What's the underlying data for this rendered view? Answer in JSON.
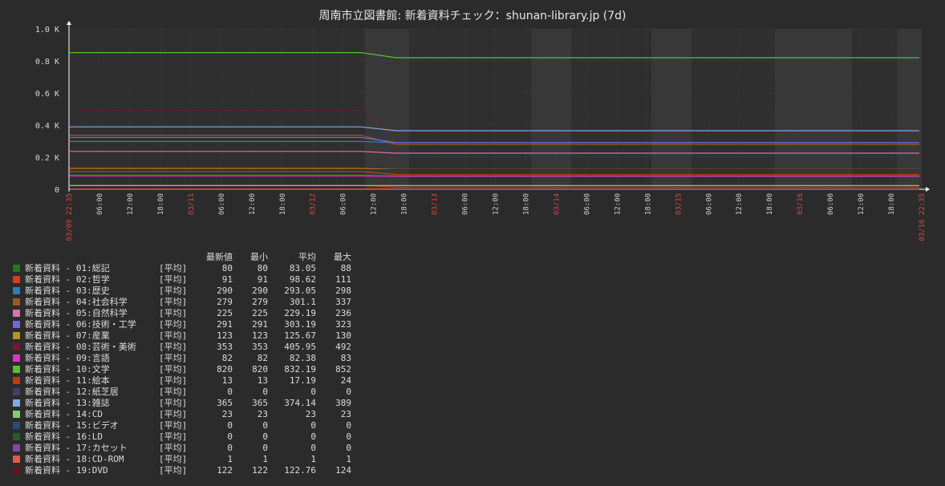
{
  "title": "周南市立図書館: 新着資料チェック：shunan-library.jp (7d)",
  "chart_data": {
    "type": "line",
    "title": "周南市立図書館: 新着資料チェック：shunan-library.jp (7d)",
    "y_ticks": [
      "1.0 K",
      "0.8 K",
      "0.6 K",
      "0.4 K",
      "0.2 K",
      "0"
    ],
    "ylim": [
      0,
      1000
    ],
    "x_tick_labels": [
      "03/09 22:35",
      "06:00",
      "12:00",
      "18:00",
      "03/11",
      "06:00",
      "12:00",
      "18:00",
      "03/12",
      "06:00",
      "12:00",
      "18:00",
      "03/13",
      "06:00",
      "12:00",
      "18:00",
      "03/14",
      "06:00",
      "12:00",
      "18:00",
      "03/15",
      "06:00",
      "12:00",
      "18:00",
      "03/16",
      "06:00",
      "12:00",
      "18:00",
      "03/16 22:35"
    ],
    "x_tick_highlight": [
      true,
      false,
      false,
      false,
      true,
      false,
      false,
      false,
      true,
      false,
      false,
      false,
      true,
      false,
      false,
      false,
      true,
      false,
      false,
      false,
      true,
      false,
      false,
      false,
      true,
      false,
      false,
      false,
      true
    ],
    "grid": true,
    "legend_position": "bottom-left",
    "stat_headers": [
      "最新値",
      "最小",
      "平均",
      "最大"
    ],
    "series": [
      {
        "name": "新着資料 - 01:総記",
        "agg": "[平均]",
        "color": "#1f7a1f",
        "last": "80",
        "min": "80",
        "avg": "83.05",
        "max": "88",
        "before": 88,
        "after": 80
      },
      {
        "name": "新着資料 - 02:哲学",
        "agg": "[平均]",
        "color": "#d83a18",
        "last": "91",
        "min": "91",
        "avg": "98.62",
        "max": "111",
        "before": 111,
        "after": 91
      },
      {
        "name": "新着資料 - 03:歴史",
        "agg": "[平均]",
        "color": "#2a7fb8",
        "last": "290",
        "min": "290",
        "avg": "293.05",
        "max": "298",
        "before": 298,
        "after": 290
      },
      {
        "name": "新着資料 - 04:社会科学",
        "agg": "[平均]",
        "color": "#9a5a1e",
        "last": "279",
        "min": "279",
        "avg": "301.1",
        "max": "337",
        "before": 337,
        "after": 279
      },
      {
        "name": "新着資料 - 05:自然科学",
        "agg": "[平均]",
        "color": "#e070a8",
        "last": "225",
        "min": "225",
        "avg": "229.19",
        "max": "236",
        "before": 236,
        "after": 225
      },
      {
        "name": "新着資料 - 06:技術・工学",
        "agg": "[平均]",
        "color": "#7068dc",
        "last": "291",
        "min": "291",
        "avg": "303.19",
        "max": "323",
        "before": 323,
        "after": 291
      },
      {
        "name": "新着資料 - 07:産業",
        "agg": "[平均]",
        "color": "#b8921e",
        "last": "123",
        "min": "123",
        "avg": "125.67",
        "max": "130",
        "before": 130,
        "after": 123
      },
      {
        "name": "新着資料 - 08:芸術・美術",
        "agg": "[平均]",
        "color": "#781830",
        "last": "353",
        "min": "353",
        "avg": "405.95",
        "max": "492",
        "before": 492,
        "after": 353
      },
      {
        "name": "新着資料 - 09:言語",
        "agg": "[平均]",
        "color": "#e030c8",
        "last": "82",
        "min": "82",
        "avg": "82.38",
        "max": "83",
        "before": 83,
        "after": 82
      },
      {
        "name": "新着資料 - 10:文学",
        "agg": "[平均]",
        "color": "#58c030",
        "last": "820",
        "min": "820",
        "avg": "832.19",
        "max": "852",
        "before": 852,
        "after": 820
      },
      {
        "name": "新着資料 - 11:絵本",
        "agg": "[平均]",
        "color": "#c03a10",
        "last": "13",
        "min": "13",
        "avg": "17.19",
        "max": "24",
        "before": 24,
        "after": 13
      },
      {
        "name": "新着資料 - 12:紙芝居",
        "agg": "[平均]",
        "color": "#4a3a68",
        "last": "0",
        "min": "0",
        "avg": "0",
        "max": "0",
        "before": 0,
        "after": 0
      },
      {
        "name": "新着資料 - 13:雑誌",
        "agg": "[平均]",
        "color": "#80a8e8",
        "last": "365",
        "min": "365",
        "avg": "374.14",
        "max": "389",
        "before": 389,
        "after": 365
      },
      {
        "name": "新着資料 - 14:CD",
        "agg": "[平均]",
        "color": "#78d078",
        "last": "23",
        "min": "23",
        "avg": "23",
        "max": "23",
        "before": 23,
        "after": 23
      },
      {
        "name": "新着資料 - 15:ビデオ",
        "agg": "[平均]",
        "color": "#284c78",
        "last": "0",
        "min": "0",
        "avg": "0",
        "max": "0",
        "before": 0,
        "after": 0
      },
      {
        "name": "新着資料 - 16:LD",
        "agg": "[平均]",
        "color": "#2c5a2c",
        "last": "0",
        "min": "0",
        "avg": "0",
        "max": "0",
        "before": 0,
        "after": 0
      },
      {
        "name": "新着資料 - 17:カセット",
        "agg": "[平均]",
        "color": "#8048a8",
        "last": "0",
        "min": "0",
        "avg": "0",
        "max": "0",
        "before": 0,
        "after": 0
      },
      {
        "name": "新着資料 - 18:CD-ROM",
        "agg": "[平均]",
        "color": "#e85848",
        "last": "1",
        "min": "1",
        "avg": "1",
        "max": "1",
        "before": 1,
        "after": 1
      },
      {
        "name": "新着資料 - 19:DVD",
        "agg": "[平均]",
        "color": "#6a1020",
        "last": "122",
        "min": "122",
        "avg": "122.76",
        "max": "124",
        "before": 124,
        "after": 122
      }
    ]
  }
}
